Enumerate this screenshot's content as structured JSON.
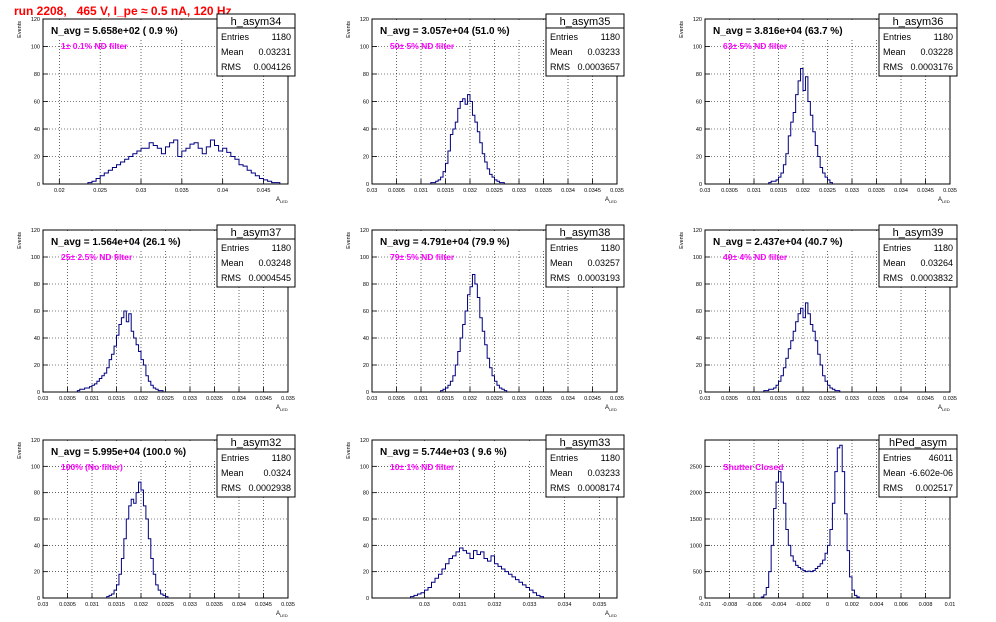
{
  "page_title": "run 2208,   465 V, I_pe ≈ 0.5 nA, 120 Hz",
  "colors": {
    "title": "#ff0000",
    "annotation": "#ff00ff",
    "histogram": "#000080",
    "grid": "#000000"
  },
  "chart_data": [
    {
      "type": "histogram",
      "name": "h_asym34",
      "headline": "N_avg = 5.658e+02 ( 0.9 %)",
      "annotation": "1± 0.1% ND filter",
      "stats": {
        "entries_label": "Entries",
        "entries": "1180",
        "mean_label": "Mean",
        "mean": "0.03231",
        "rms_label": "RMS",
        "rms": "0.004126"
      },
      "ylabel": "Events",
      "xlabel": "A_LED",
      "xlim": [
        0.018,
        0.048
      ],
      "ylim": [
        0,
        120
      ],
      "xticks": [
        "0.02",
        "0.025",
        "0.03",
        "0.035",
        "0.04",
        "0.045"
      ],
      "yticks": [
        "0",
        "20",
        "40",
        "60",
        "80",
        "100",
        "120"
      ],
      "bin_width": 0.0005,
      "bin_start": 0.0235,
      "counts": [
        1,
        2,
        4,
        6,
        8,
        10,
        12,
        14,
        16,
        18,
        20,
        22,
        24,
        26,
        26,
        30,
        28,
        26,
        22,
        27,
        30,
        32,
        20,
        24,
        26,
        29,
        30,
        26,
        22,
        27,
        32,
        28,
        24,
        26,
        23,
        20,
        18,
        14,
        13,
        10,
        8,
        6,
        4,
        3,
        2,
        1,
        1
      ]
    },
    {
      "type": "histogram",
      "name": "h_asym35",
      "headline": "N_avg = 3.057e+04 (51.0 %)",
      "annotation": "50± 5% ND filter",
      "stats": {
        "entries_label": "Entries",
        "entries": "1180",
        "mean_label": "Mean",
        "mean": "0.03233",
        "rms_label": "RMS",
        "rms": "0.0003657"
      },
      "ylabel": "Events",
      "xlabel": "A_LED",
      "xlim": [
        0.03,
        0.035
      ],
      "ylim": [
        0,
        120
      ],
      "xticks": [
        "0.03",
        "0.0305",
        "0.031",
        "0.0315",
        "0.032",
        "0.0325",
        "0.033",
        "0.0335",
        "0.034",
        "0.0345",
        "0.035"
      ],
      "yticks": [
        "0",
        "20",
        "40",
        "60",
        "80",
        "100",
        "120"
      ],
      "bin_width": 5e-05,
      "bin_start": 0.0312,
      "counts": [
        1,
        1,
        2,
        3,
        5,
        9,
        15,
        24,
        36,
        40,
        45,
        55,
        60,
        62,
        58,
        65,
        60,
        50,
        45,
        38,
        30,
        22,
        16,
        11,
        7,
        5,
        3,
        2,
        1,
        1
      ]
    },
    {
      "type": "histogram",
      "name": "h_asym36",
      "headline": "N_avg = 3.816e+04 (63.7 %)",
      "annotation": "63± 5% ND filter",
      "stats": {
        "entries_label": "Entries",
        "entries": "1180",
        "mean_label": "Mean",
        "mean": "0.03228",
        "rms_label": "RMS",
        "rms": "0.0003176"
      },
      "ylabel": "Events",
      "xlabel": "A_LED",
      "xlim": [
        0.03,
        0.035
      ],
      "ylim": [
        0,
        120
      ],
      "xticks": [
        "0.03",
        "0.0305",
        "0.031",
        "0.0315",
        "0.032",
        "0.0325",
        "0.033",
        "0.0335",
        "0.034",
        "0.0345",
        "0.035"
      ],
      "yticks": [
        "0",
        "20",
        "40",
        "60",
        "80",
        "100",
        "120"
      ],
      "bin_width": 5e-05,
      "bin_start": 0.0313,
      "counts": [
        1,
        2,
        2,
        3,
        5,
        8,
        14,
        22,
        35,
        45,
        52,
        65,
        75,
        84,
        68,
        78,
        60,
        50,
        38,
        28,
        20,
        12,
        8,
        5,
        3,
        1
      ]
    },
    {
      "type": "histogram",
      "name": "h_asym37",
      "headline": "N_avg = 1.564e+04 (26.1 %)",
      "annotation": "25± 2.5% ND filter",
      "stats": {
        "entries_label": "Entries",
        "entries": "1180",
        "mean_label": "Mean",
        "mean": "0.03248",
        "rms_label": "RMS",
        "rms": "0.0004545"
      },
      "ylabel": "Events",
      "xlabel": "A_LED",
      "xlim": [
        0.03,
        0.035
      ],
      "ylim": [
        0,
        120
      ],
      "xticks": [
        "0.03",
        "0.0305",
        "0.031",
        "0.0315",
        "0.032",
        "0.0325",
        "0.033",
        "0.0335",
        "0.034",
        "0.0345",
        "0.035"
      ],
      "yticks": [
        "0",
        "20",
        "40",
        "60",
        "80",
        "100",
        "120"
      ],
      "bin_width": 5e-05,
      "bin_start": 0.0307,
      "counts": [
        1,
        2,
        2,
        3,
        3,
        4,
        5,
        6,
        8,
        10,
        12,
        14,
        18,
        24,
        28,
        34,
        42,
        50,
        55,
        60,
        52,
        58,
        45,
        40,
        35,
        30,
        24,
        20,
        12,
        8,
        5,
        3,
        2,
        1,
        1
      ]
    },
    {
      "type": "histogram",
      "name": "h_asym38",
      "headline": "N_avg = 4.791e+04 (79.9 %)",
      "annotation": "79± 5% ND filter",
      "stats": {
        "entries_label": "Entries",
        "entries": "1180",
        "mean_label": "Mean",
        "mean": "0.03257",
        "rms_label": "RMS",
        "rms": "0.0003193"
      },
      "ylabel": "Events",
      "xlabel": "A_LED",
      "xlim": [
        0.03,
        0.035
      ],
      "ylim": [
        0,
        120
      ],
      "xticks": [
        "0.03",
        "0.0305",
        "0.031",
        "0.0315",
        "0.032",
        "0.0325",
        "0.033",
        "0.0335",
        "0.034",
        "0.0345",
        "0.035"
      ],
      "yticks": [
        "0",
        "20",
        "40",
        "60",
        "80",
        "100",
        "120"
      ],
      "bin_width": 5e-05,
      "bin_start": 0.0314,
      "counts": [
        1,
        2,
        3,
        5,
        8,
        12,
        20,
        30,
        40,
        50,
        60,
        72,
        78,
        87,
        80,
        70,
        55,
        45,
        35,
        25,
        18,
        12,
        8,
        5,
        3,
        2,
        1
      ]
    },
    {
      "type": "histogram",
      "name": "h_asym39",
      "headline": "N_avg = 2.437e+04 (40.7 %)",
      "annotation": "40± 4% ND filter",
      "stats": {
        "entries_label": "Entries",
        "entries": "1180",
        "mean_label": "Mean",
        "mean": "0.03264",
        "rms_label": "RMS",
        "rms": "0.0003832"
      },
      "ylabel": "Events",
      "xlabel": "A_LED",
      "xlim": [
        0.03,
        0.035
      ],
      "ylim": [
        0,
        120
      ],
      "xticks": [
        "0.03",
        "0.0305",
        "0.031",
        "0.0315",
        "0.032",
        "0.0325",
        "0.033",
        "0.0335",
        "0.034",
        "0.0345",
        "0.035"
      ],
      "yticks": [
        "0",
        "20",
        "40",
        "60",
        "80",
        "100",
        "120"
      ],
      "bin_width": 5e-05,
      "bin_start": 0.0312,
      "counts": [
        1,
        1,
        2,
        2,
        3,
        5,
        8,
        12,
        18,
        25,
        32,
        38,
        45,
        52,
        58,
        62,
        55,
        66,
        58,
        50,
        45,
        38,
        28,
        20,
        12,
        8,
        5,
        3,
        2,
        1,
        1
      ]
    },
    {
      "type": "histogram",
      "name": "h_asym32",
      "headline": "N_avg = 5.995e+04 (100.0 %)",
      "annotation": "100% (No filter)",
      "stats": {
        "entries_label": "Entries",
        "entries": "1180",
        "mean_label": "Mean",
        "mean": "0.0324",
        "rms_label": "RMS",
        "rms": "0.0002938"
      },
      "ylabel": "Events",
      "xlabel": "A_LED",
      "xlim": [
        0.03,
        0.035
      ],
      "ylim": [
        0,
        120
      ],
      "xticks": [
        "0.03",
        "0.0305",
        "0.031",
        "0.0315",
        "0.032",
        "0.0325",
        "0.033",
        "0.0335",
        "0.034",
        "0.0345",
        "0.035"
      ],
      "yticks": [
        "0",
        "20",
        "40",
        "60",
        "80",
        "100",
        "120"
      ],
      "bin_width": 5e-05,
      "bin_start": 0.0313,
      "counts": [
        1,
        2,
        3,
        6,
        10,
        18,
        30,
        45,
        60,
        70,
        75,
        72,
        80,
        88,
        82,
        70,
        60,
        45,
        30,
        18,
        10,
        6,
        3,
        2,
        1
      ]
    },
    {
      "type": "histogram",
      "name": "h_asym33",
      "headline": "N_avg = 5.744e+03 ( 9.6 %)",
      "annotation": "10± 1% ND filter",
      "stats": {
        "entries_label": "Entries",
        "entries": "1180",
        "mean_label": "Mean",
        "mean": "0.03233",
        "rms_label": "RMS",
        "rms": "0.0008174"
      },
      "ylabel": "Events",
      "xlabel": "A_LED",
      "xlim": [
        0.0285,
        0.0355
      ],
      "ylim": [
        0,
        120
      ],
      "xticks": [
        "0.03",
        "0.031",
        "0.032",
        "0.033",
        "0.034",
        "0.035"
      ],
      "yticks": [
        "0",
        "20",
        "40",
        "60",
        "80",
        "100",
        "120"
      ],
      "bin_width": 0.0001,
      "bin_start": 0.0296,
      "counts": [
        1,
        2,
        3,
        4,
        6,
        8,
        12,
        15,
        18,
        22,
        26,
        30,
        32,
        35,
        38,
        36,
        34,
        30,
        36,
        33,
        35,
        30,
        28,
        32,
        26,
        24,
        22,
        20,
        18,
        16,
        14,
        12,
        10,
        8,
        6,
        4,
        2,
        1
      ]
    },
    {
      "type": "histogram",
      "name": "hPed_asym",
      "headline": "",
      "annotation": "Shutter Closed",
      "stats": {
        "entries_label": "Entries",
        "entries": "46011",
        "mean_label": "Mean",
        "mean": "-6.602e-06",
        "rms_label": "RMS",
        "rms": "0.002517"
      },
      "ylabel": "",
      "xlabel": "",
      "xlim": [
        -0.01,
        0.01
      ],
      "ylim": [
        0,
        3000
      ],
      "xticks": [
        "-0.01",
        "-0.008",
        "-0.006",
        "-0.004",
        "-0.002",
        "0",
        "0.002",
        "0.004",
        "0.006",
        "0.008",
        "0.01"
      ],
      "yticks": [
        "0",
        "500",
        "1000",
        "1500",
        "2000",
        "2500"
      ],
      "bin_width": 0.0002,
      "bin_start": -0.0054,
      "counts": [
        20,
        60,
        200,
        500,
        1000,
        1700,
        2200,
        2400,
        2200,
        1800,
        1300,
        1000,
        800,
        700,
        620,
        580,
        550,
        520,
        500,
        510,
        500,
        520,
        560,
        600,
        650,
        720,
        850,
        1000,
        1300,
        1800,
        2400,
        2850,
        2900,
        2400,
        1600,
        900,
        400,
        150,
        50,
        20
      ]
    }
  ]
}
